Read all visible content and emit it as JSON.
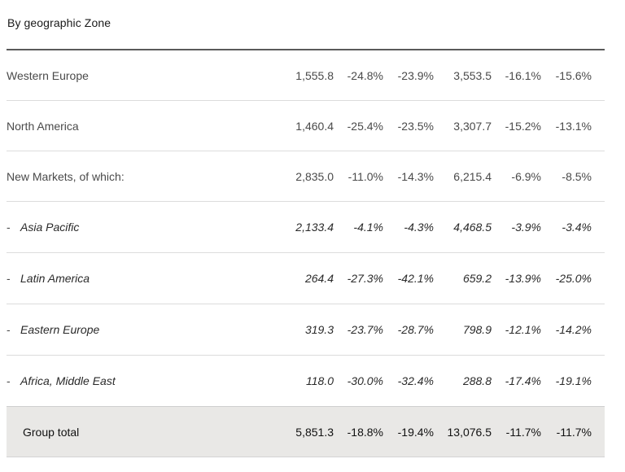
{
  "title": "By geographic Zone",
  "rows": [
    {
      "label": "Western Europe",
      "values": [
        "1,555.8",
        "-24.8%",
        "-23.9%",
        "3,553.5",
        "-16.1%",
        "-15.6%"
      ]
    },
    {
      "label": "North America",
      "values": [
        "1,460.4",
        "-25.4%",
        "-23.5%",
        "3,307.7",
        "-15.2%",
        "-13.1%"
      ]
    },
    {
      "label": "New Markets, of which:",
      "values": [
        "2,835.0",
        "-11.0%",
        "-14.3%",
        "6,215.4",
        "-6.9%",
        "-8.5%"
      ]
    },
    {
      "dash": "-",
      "label": "Asia Pacific",
      "values": [
        "2,133.4",
        "-4.1%",
        "-4.3%",
        "4,468.5",
        "-3.9%",
        "-3.4%"
      ]
    },
    {
      "dash": "-",
      "label": "Latin America",
      "values": [
        "264.4",
        "-27.3%",
        "-42.1%",
        "659.2",
        "-13.9%",
        "-25.0%"
      ]
    },
    {
      "dash": "-",
      "label": "Eastern Europe",
      "values": [
        "319.3",
        "-23.7%",
        "-28.7%",
        "798.9",
        "-12.1%",
        "-14.2%"
      ]
    },
    {
      "dash": "-",
      "label": "Africa, Middle East",
      "values": [
        "118.0",
        "-30.0%",
        "-32.4%",
        "288.8",
        "-17.4%",
        "-19.1%"
      ]
    }
  ],
  "total": {
    "label": "Group total",
    "values": [
      "5,851.3",
      "-18.8%",
      "-19.4%",
      "13,076.5",
      "-11.7%",
      "-11.7%"
    ]
  }
}
